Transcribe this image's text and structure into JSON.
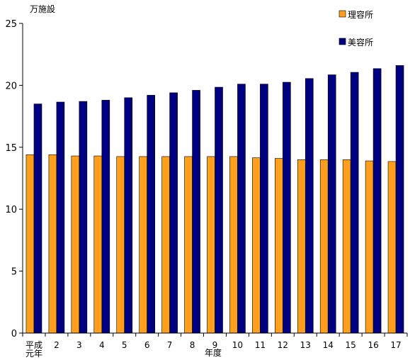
{
  "chart_data": {
    "type": "bar",
    "ylabel": "万施設",
    "xlabel": "年度",
    "ylim": [
      0,
      25
    ],
    "yticks": [
      0,
      5,
      10,
      15,
      20,
      25
    ],
    "grid": false,
    "legend_position": "top-right",
    "categories": [
      "平成\n元年",
      "2",
      "3",
      "4",
      "5",
      "6",
      "7",
      "8",
      "9",
      "10",
      "11",
      "12",
      "13",
      "14",
      "15",
      "16",
      "17"
    ],
    "series": [
      {
        "name": "理容所",
        "color": "#FF9F1C",
        "values": [
          14.4,
          14.4,
          14.3,
          14.3,
          14.25,
          14.25,
          14.25,
          14.25,
          14.25,
          14.25,
          14.15,
          14.1,
          14.0,
          14.0,
          14.0,
          13.9,
          13.85
        ]
      },
      {
        "name": "美容所",
        "color": "#000080",
        "values": [
          18.5,
          18.65,
          18.7,
          18.8,
          19.0,
          19.2,
          19.4,
          19.6,
          19.85,
          20.1,
          20.1,
          20.25,
          20.55,
          20.85,
          21.05,
          21.35,
          21.6
        ]
      }
    ]
  }
}
